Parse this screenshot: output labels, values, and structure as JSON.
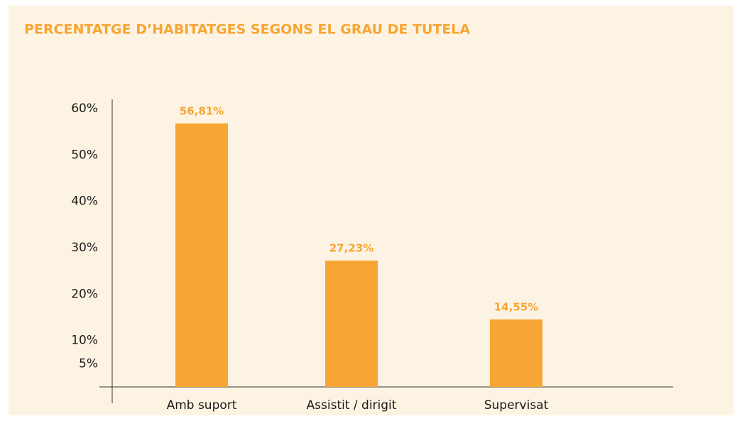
{
  "chart_data": {
    "type": "bar",
    "title": "PERCENTATGE D’HABITATGES SEGONS EL GRAU DE TUTELA",
    "categories": [
      "Amb suport",
      "Assistit  / dirigit",
      "Supervisat"
    ],
    "values": [
      56.81,
      27.23,
      14.55
    ],
    "value_labels": [
      "56,81%",
      "27,23%",
      "14,55%"
    ],
    "color": "#f7a534",
    "ylim": [
      0,
      60
    ],
    "yticks": [
      {
        "value": 60,
        "label": "60%"
      },
      {
        "value": 50,
        "label": "50%"
      },
      {
        "value": 40,
        "label": "40%"
      },
      {
        "value": 30,
        "label": "30%"
      },
      {
        "value": 20,
        "label": "20%"
      },
      {
        "value": 10,
        "label": "10%"
      },
      {
        "value": 5,
        "label": "5%"
      }
    ],
    "grid": false
  }
}
